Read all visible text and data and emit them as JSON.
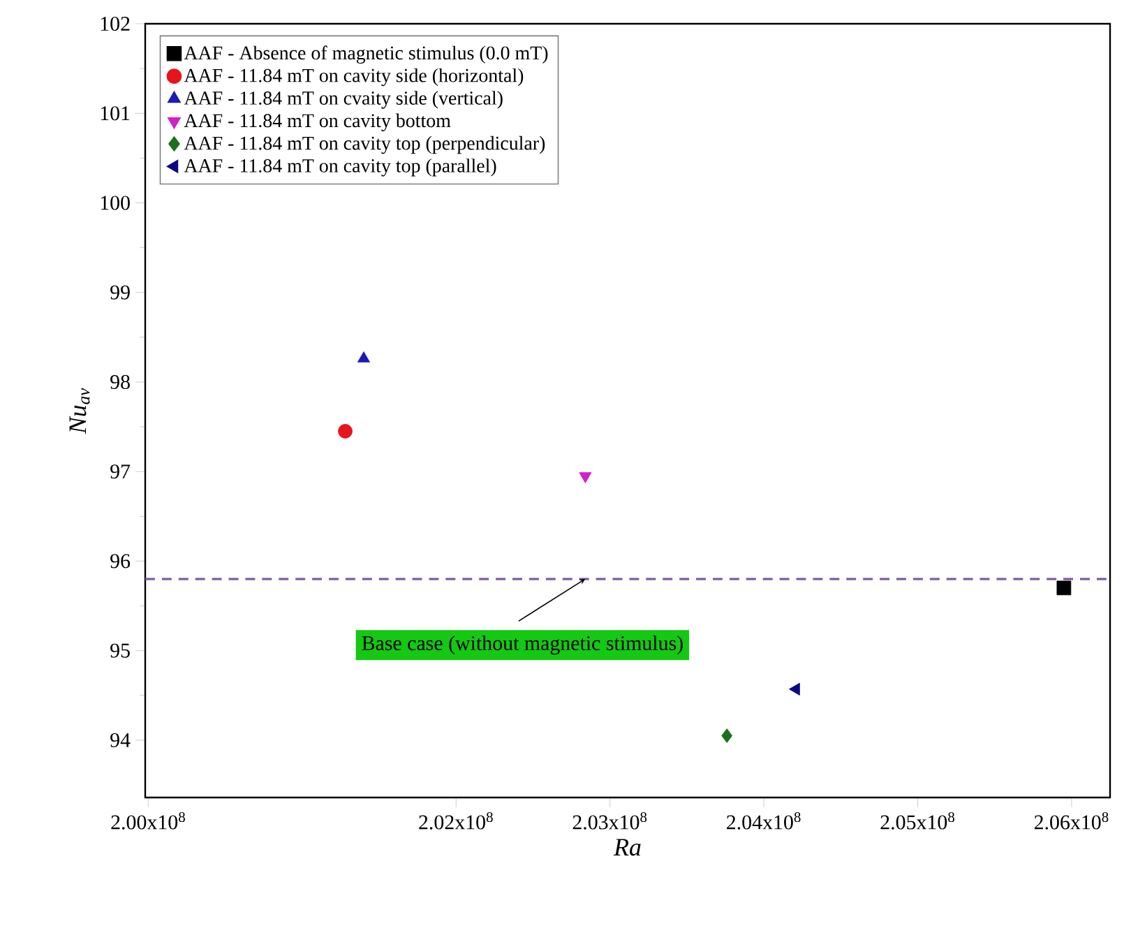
{
  "chart_data": {
    "type": "scatter",
    "xlabel": "*Ra*",
    "ylabel": "*Nu*$_{av}$",
    "xlim": [
      199980000,
      206250000
    ],
    "ylim": [
      93.36,
      102
    ],
    "xticks": [
      {
        "value": 200000000,
        "label": "2.00x10$^{8}$"
      },
      {
        "value": 202000000,
        "label": "2.02x10$^{8}$"
      },
      {
        "value": 203000000,
        "label": "2.03x10$^{8}$"
      },
      {
        "value": 204000000,
        "label": "2.04x10$^{8}$"
      },
      {
        "value": 205000000,
        "label": "2.05x10$^{8}$"
      },
      {
        "value": 206000000,
        "label": "2.06x10$^{8}$"
      }
    ],
    "yticks": [
      94,
      95,
      96,
      97,
      98,
      99,
      100,
      101,
      102
    ],
    "grid": false,
    "legend": "top left",
    "ref_lines": [
      {
        "axis": "y",
        "value": 95.8,
        "label": "Base case (without magnetic stimulus)",
        "color": "#7b5ea7",
        "line_style": "dashed"
      }
    ],
    "series": [
      {
        "name": "AAF - Absence of magnetic stimulus (0.0 mT)",
        "color": "#000000",
        "marker": "square",
        "x": [
          205950000
        ],
        "values": [
          95.7
        ]
      },
      {
        "name": "AAF - 11.84 mT on cavity side (horizontal)",
        "color": "#e8141b",
        "marker": "circle",
        "x": [
          201280000
        ],
        "values": [
          97.45
        ]
      },
      {
        "name": "AAF - 11.84 mT on cvaity side (vertical)",
        "color": "#1a1ab8",
        "marker": "triangle",
        "x": [
          201400000
        ],
        "values": [
          98.26
        ]
      },
      {
        "name": "AAF - 11.84 mT on cavity bottom",
        "color": "#d020c8",
        "marker": "triangle-down",
        "x": [
          202840000
        ],
        "values": [
          96.95
        ]
      },
      {
        "name": "AAF - 11.84 mT on cavity top (perpendicular)",
        "color": "#1e6e1e",
        "marker": "diamond",
        "x": [
          203760000
        ],
        "values": [
          94.05
        ]
      },
      {
        "name": "AAF - 11.84 mT on cavity top (parallel)",
        "color": "#0a0a80",
        "marker": "triangle-left",
        "x": [
          204210000
        ],
        "values": [
          94.57
        ]
      }
    ]
  }
}
